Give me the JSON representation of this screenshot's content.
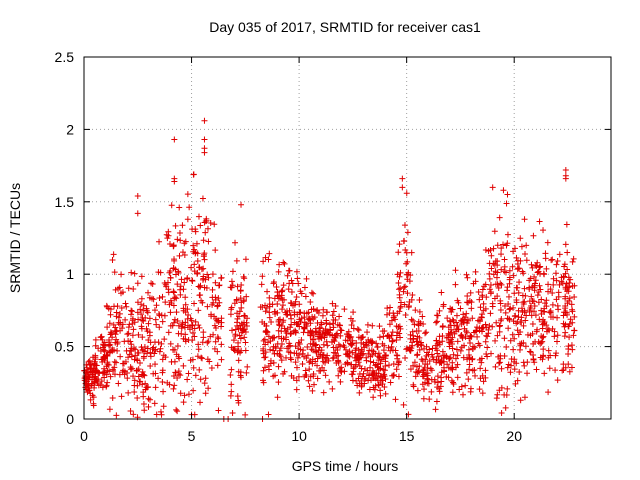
{
  "chart_data": {
    "type": "scatter",
    "title": "Day 035 of 2017, SRMTID for receiver cas1",
    "xlabel": "GPS time / hours",
    "ylabel": "SRMTID / TECUs",
    "xlim": [
      0,
      24.5
    ],
    "ylim": [
      0,
      2.5
    ],
    "x_ticks": [
      0,
      5,
      10,
      15,
      20
    ],
    "x_tick_labels": [
      "0",
      "5",
      "10",
      "15",
      "20"
    ],
    "y_ticks": [
      0,
      0.5,
      1,
      1.5,
      2,
      2.5
    ],
    "y_tick_labels": [
      "0",
      "0.5",
      "1",
      "1.5",
      "2",
      "2.5"
    ],
    "grid": true,
    "marker": "+",
    "color": "#e00000",
    "series": [
      {
        "name": "SRMTID",
        "envelope_hours": [
          0,
          0.5,
          1,
          1.5,
          2,
          2.5,
          3,
          3.5,
          4,
          4.5,
          5,
          5.5,
          6,
          6.5,
          7,
          7.5,
          8,
          8.5,
          9,
          9.5,
          10,
          10.5,
          11,
          11.5,
          12,
          12.5,
          13,
          13.5,
          14,
          14.5,
          15,
          15.5,
          16,
          16.5,
          17,
          17.5,
          18,
          18.5,
          19,
          19.5,
          20,
          20.5,
          21,
          21.5,
          22,
          22.5,
          22.8
        ],
        "envelope_center": [
          0.25,
          0.32,
          0.42,
          0.6,
          0.5,
          0.55,
          0.45,
          0.55,
          0.7,
          0.75,
          0.8,
          0.9,
          0.75,
          0.6,
          0.55,
          0.65,
          0.55,
          0.6,
          0.7,
          0.7,
          0.6,
          0.55,
          0.5,
          0.5,
          0.55,
          0.45,
          0.4,
          0.38,
          0.4,
          0.55,
          0.85,
          0.45,
          0.35,
          0.45,
          0.5,
          0.6,
          0.6,
          0.65,
          0.8,
          0.8,
          0.7,
          0.85,
          0.8,
          0.75,
          0.8,
          0.75,
          0.7
        ],
        "envelope_spread": [
          0.08,
          0.12,
          0.2,
          0.35,
          0.3,
          0.35,
          0.35,
          0.4,
          0.45,
          0.45,
          0.5,
          0.55,
          0.4,
          0.35,
          0.35,
          0.35,
          0.3,
          0.3,
          0.3,
          0.3,
          0.25,
          0.25,
          0.2,
          0.2,
          0.2,
          0.18,
          0.15,
          0.15,
          0.18,
          0.3,
          0.45,
          0.25,
          0.2,
          0.25,
          0.25,
          0.25,
          0.3,
          0.35,
          0.45,
          0.45,
          0.35,
          0.4,
          0.35,
          0.35,
          0.35,
          0.35,
          0.3
        ],
        "outliers": [
          [
            2.5,
            1.54
          ],
          [
            2.5,
            1.42
          ],
          [
            4.2,
            1.93
          ],
          [
            4.2,
            1.66
          ],
          [
            4.2,
            1.64
          ],
          [
            5.6,
            2.06
          ],
          [
            5.6,
            1.93
          ],
          [
            5.6,
            1.87
          ],
          [
            5.6,
            1.84
          ],
          [
            7.3,
            1.48
          ],
          [
            14.8,
            1.66
          ],
          [
            14.8,
            1.6
          ],
          [
            19.0,
            1.6
          ],
          [
            19.5,
            1.58
          ],
          [
            22.4,
            1.72
          ],
          [
            22.4,
            1.68
          ],
          [
            22.4,
            1.66
          ],
          [
            6.5,
            0.0
          ],
          [
            6.7,
            0.0
          ],
          [
            8.3,
            0.0
          ],
          [
            5.0,
            0.03
          ],
          [
            2.8,
            0.06
          ],
          [
            9.0,
            0.15
          ],
          [
            15.8,
            0.14
          ],
          [
            20.5,
            0.15
          ]
        ],
        "gaps_hours": [
          [
            6.4,
            6.8
          ],
          [
            7.6,
            8.2
          ]
        ]
      }
    ]
  }
}
